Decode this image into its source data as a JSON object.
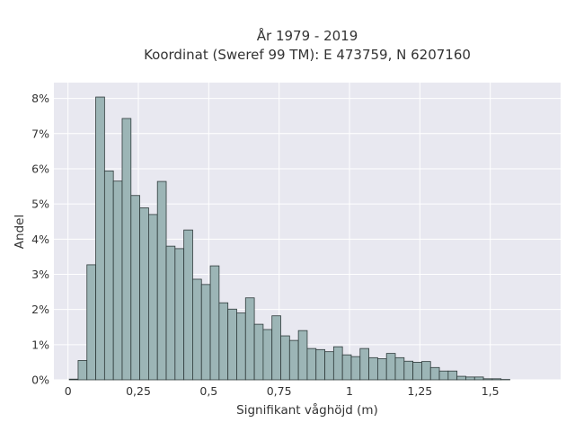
{
  "chart_data": {
    "type": "bar",
    "title": "År 1979 - 2019",
    "subtitle": "Koordinat (Sweref 99 TM): E 473759, N 6207160",
    "xlabel": "Signifikant våghöjd (m)",
    "ylabel": "Andel",
    "xlim": [
      -0.05,
      1.75
    ],
    "ylim": [
      0,
      0.0845
    ],
    "grid": true,
    "x_ticks": [
      0,
      0.25,
      0.5,
      0.75,
      1,
      1.25,
      1.5
    ],
    "x_tick_labels": [
      "0",
      "0,25",
      "0,5",
      "0,75",
      "1",
      "1,25",
      "1,5"
    ],
    "y_ticks": [
      0,
      0.01,
      0.02,
      0.03,
      0.04,
      0.05,
      0.06,
      0.07,
      0.08
    ],
    "y_tick_labels": [
      "0%",
      "1%",
      "2%",
      "3%",
      "4%",
      "5%",
      "6%",
      "7%",
      "8%"
    ],
    "bin_width": 0.0313,
    "bin_start": 0.0047,
    "values": [
      0.0002,
      0.0055,
      0.0327,
      0.0804,
      0.0594,
      0.0565,
      0.0743,
      0.0524,
      0.0489,
      0.047,
      0.0564,
      0.038,
      0.0373,
      0.0426,
      0.0286,
      0.0271,
      0.0324,
      0.0219,
      0.0201,
      0.019,
      0.0233,
      0.0158,
      0.0143,
      0.0182,
      0.0125,
      0.0112,
      0.014,
      0.0089,
      0.0086,
      0.008,
      0.0094,
      0.0071,
      0.0066,
      0.0089,
      0.0063,
      0.006,
      0.0075,
      0.0063,
      0.0053,
      0.005,
      0.0052,
      0.0035,
      0.0025,
      0.0025,
      0.001,
      0.0008,
      0.0008,
      0.0003,
      0.0003,
      0.0001
    ],
    "colors": {
      "bar_fill": "#9cb5b6",
      "bar_edge": "#2e3a3a",
      "plot_bg": "#e8e8f0",
      "grid": "#ffffff",
      "text": "#333333"
    }
  }
}
